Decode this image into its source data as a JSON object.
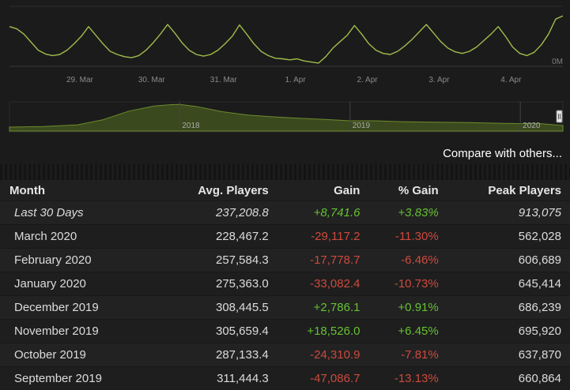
{
  "compare_label": "Compare with others...",
  "chart_data": [
    {
      "type": "line",
      "x_ticks": [
        "29. Mar",
        "30. Mar",
        "31. Mar",
        "1. Apr",
        "2. Apr",
        "3. Apr",
        "4. Apr"
      ],
      "y_ticks": [
        "0M"
      ],
      "series": [
        {
          "x": [
            28.0,
            28.1,
            28.2,
            28.3,
            28.4,
            28.5,
            28.6,
            28.7,
            28.8,
            28.9,
            29.0,
            29.1,
            29.2,
            29.3,
            29.4,
            29.5,
            29.6,
            29.7,
            29.8,
            29.9,
            30.0,
            30.1,
            30.2,
            30.3,
            30.4,
            30.5,
            30.6,
            30.7,
            30.8,
            30.9,
            31.0,
            31.1,
            31.2,
            31.3,
            31.4,
            31.5,
            31.6,
            31.7,
            31.8,
            31.9,
            32.0,
            32.1,
            32.2,
            32.3,
            32.4,
            32.5,
            32.6,
            32.7,
            32.8,
            32.9,
            33.0,
            33.1,
            33.2,
            33.3,
            33.4,
            33.5,
            33.6,
            33.7,
            33.8,
            33.9,
            34.0,
            34.1,
            34.2,
            34.3,
            34.4,
            34.5,
            34.6,
            34.7,
            34.8,
            34.9,
            35.0,
            35.1,
            35.2,
            35.3,
            35.4,
            35.5,
            35.6,
            35.7
          ],
          "y": [
            0.74,
            0.7,
            0.6,
            0.45,
            0.3,
            0.23,
            0.2,
            0.22,
            0.3,
            0.42,
            0.56,
            0.74,
            0.58,
            0.42,
            0.28,
            0.22,
            0.18,
            0.16,
            0.2,
            0.3,
            0.44,
            0.6,
            0.78,
            0.62,
            0.44,
            0.3,
            0.22,
            0.19,
            0.22,
            0.3,
            0.42,
            0.56,
            0.77,
            0.6,
            0.42,
            0.28,
            0.2,
            0.15,
            0.14,
            0.12,
            0.14,
            0.1,
            0.08,
            0.06,
            0.18,
            0.34,
            0.46,
            0.58,
            0.76,
            0.6,
            0.42,
            0.3,
            0.24,
            0.22,
            0.28,
            0.38,
            0.5,
            0.64,
            0.78,
            0.62,
            0.46,
            0.34,
            0.27,
            0.24,
            0.28,
            0.36,
            0.48,
            0.6,
            0.74,
            0.56,
            0.36,
            0.24,
            0.2,
            0.26,
            0.4,
            0.6,
            0.88,
            0.94
          ]
        }
      ]
    },
    {
      "type": "area",
      "x_ticks": [
        "2018",
        "2019",
        "2020"
      ],
      "series": [
        {
          "x": [
            2017.0,
            2017.2,
            2017.4,
            2017.55,
            2017.7,
            2017.85,
            2017.95,
            2018.0,
            2018.1,
            2018.25,
            2018.4,
            2018.55,
            2018.7,
            2018.85,
            2019.0,
            2019.15,
            2019.3,
            2019.5,
            2019.7,
            2019.9,
            2020.0,
            2020.1,
            2020.2,
            2020.25
          ],
          "y": [
            0.14,
            0.16,
            0.22,
            0.4,
            0.7,
            0.88,
            0.93,
            0.94,
            0.86,
            0.68,
            0.56,
            0.5,
            0.45,
            0.41,
            0.36,
            0.36,
            0.33,
            0.31,
            0.3,
            0.27,
            0.26,
            0.27,
            0.22,
            0.2
          ]
        }
      ]
    }
  ],
  "table": {
    "headers": [
      "Month",
      "Avg. Players",
      "Gain",
      "% Gain",
      "Peak Players"
    ],
    "rows": [
      {
        "month": "Last 30 Days",
        "avg": "237,208.8",
        "gain": "+8,741.6",
        "pct": "+3.83%",
        "peak": "913,075"
      },
      {
        "month": "March 2020",
        "avg": "228,467.2",
        "gain": "-29,117.2",
        "pct": "-11.30%",
        "peak": "562,028"
      },
      {
        "month": "February 2020",
        "avg": "257,584.3",
        "gain": "-17,778.7",
        "pct": "-6.46%",
        "peak": "606,689"
      },
      {
        "month": "January 2020",
        "avg": "275,363.0",
        "gain": "-33,082.4",
        "pct": "-10.73%",
        "peak": "645,414"
      },
      {
        "month": "December 2019",
        "avg": "308,445.5",
        "gain": "+2,786.1",
        "pct": "+0.91%",
        "peak": "686,239"
      },
      {
        "month": "November 2019",
        "avg": "305,659.4",
        "gain": "+18,526.0",
        "pct": "+6.45%",
        "peak": "695,920"
      },
      {
        "month": "October 2019",
        "avg": "287,133.4",
        "gain": "-24,310.9",
        "pct": "-7.81%",
        "peak": "637,870"
      },
      {
        "month": "September 2019",
        "avg": "311,444.3",
        "gain": "-47,086.7",
        "pct": "-13.13%",
        "peak": "660,864"
      }
    ]
  }
}
